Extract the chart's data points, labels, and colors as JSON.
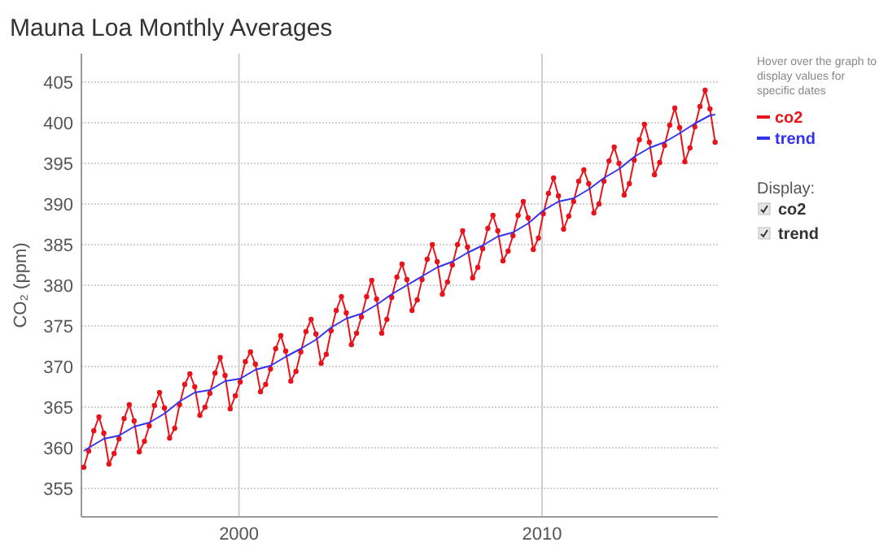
{
  "chart_data": {
    "type": "line",
    "title": "Mauna Loa Monthly Averages",
    "ylabel": "CO₂ (ppm)",
    "xlim": [
      1994.8,
      2015.8
    ],
    "xticks": [
      2000,
      2010
    ],
    "ylim": [
      351.5,
      408.5
    ],
    "yticks": [
      355,
      360,
      365,
      370,
      375,
      380,
      385,
      390,
      395,
      400,
      405
    ],
    "grid": true,
    "legend": "right",
    "line_style": "solid",
    "annotations": [
      "Hover over the graph to display values for specific dates",
      "Display:"
    ],
    "series": [
      {
        "name": "co2",
        "color": "#e8141b",
        "marker": "circle",
        "x": [
          1994.88,
          1995.04,
          1995.21,
          1995.38,
          1995.54,
          1995.71,
          1995.88,
          1996.04,
          1996.21,
          1996.38,
          1996.54,
          1996.71,
          1996.88,
          1997.04,
          1997.21,
          1997.38,
          1997.54,
          1997.71,
          1997.88,
          1998.04,
          1998.21,
          1998.38,
          1998.54,
          1998.71,
          1998.88,
          1999.04,
          1999.21,
          1999.38,
          1999.54,
          1999.71,
          1999.88,
          2000.04,
          2000.21,
          2000.38,
          2000.54,
          2000.71,
          2000.88,
          2001.04,
          2001.21,
          2001.38,
          2001.54,
          2001.71,
          2001.88,
          2002.04,
          2002.21,
          2002.38,
          2002.54,
          2002.71,
          2002.88,
          2003.04,
          2003.21,
          2003.38,
          2003.54,
          2003.71,
          2003.88,
          2004.04,
          2004.21,
          2004.38,
          2004.54,
          2004.71,
          2004.88,
          2005.04,
          2005.21,
          2005.38,
          2005.54,
          2005.71,
          2005.88,
          2006.04,
          2006.21,
          2006.38,
          2006.54,
          2006.71,
          2006.88,
          2007.04,
          2007.21,
          2007.38,
          2007.54,
          2007.71,
          2007.88,
          2008.04,
          2008.21,
          2008.38,
          2008.54,
          2008.71,
          2008.88,
          2009.04,
          2009.21,
          2009.38,
          2009.54,
          2009.71,
          2009.88,
          2010.04,
          2010.21,
          2010.38,
          2010.54,
          2010.71,
          2010.88,
          2011.04,
          2011.21,
          2011.38,
          2011.54,
          2011.71,
          2011.88,
          2012.04,
          2012.21,
          2012.38,
          2012.54,
          2012.71,
          2012.88,
          2013.04,
          2013.21,
          2013.38,
          2013.54,
          2013.71,
          2013.88,
          2014.04,
          2014.21,
          2014.38,
          2014.54,
          2014.71,
          2014.88,
          2015.04,
          2015.21,
          2015.38,
          2015.54,
          2015.71
        ],
        "values": [
          357.6,
          359.6,
          362.1,
          363.8,
          361.8,
          358.0,
          359.3,
          361.1,
          363.6,
          365.3,
          363.3,
          359.5,
          360.8,
          362.7,
          365.2,
          366.8,
          364.9,
          361.2,
          362.4,
          365.3,
          367.8,
          369.1,
          367.5,
          364.0,
          365.0,
          366.7,
          369.2,
          371.1,
          368.9,
          364.8,
          366.4,
          368.1,
          370.6,
          371.8,
          370.3,
          366.9,
          367.8,
          369.7,
          372.2,
          373.8,
          371.9,
          368.2,
          369.4,
          371.8,
          374.3,
          375.8,
          374.0,
          370.4,
          371.5,
          374.4,
          376.9,
          378.6,
          376.6,
          372.7,
          374.1,
          376.1,
          378.6,
          380.6,
          378.3,
          374.1,
          375.8,
          378.5,
          381.0,
          382.6,
          380.7,
          376.9,
          378.2,
          380.7,
          383.2,
          385.0,
          382.9,
          378.9,
          380.4,
          382.5,
          385.0,
          386.7,
          384.7,
          380.9,
          382.2,
          384.5,
          387.0,
          388.6,
          386.7,
          383.0,
          384.2,
          386.1,
          388.6,
          390.3,
          388.3,
          384.4,
          385.8,
          388.8,
          391.3,
          393.2,
          391.0,
          386.9,
          388.5,
          390.3,
          392.8,
          394.2,
          392.5,
          388.9,
          390.0,
          392.8,
          395.3,
          397.0,
          395.0,
          391.1,
          392.5,
          395.4,
          397.9,
          399.8,
          397.6,
          393.6,
          395.1,
          397.2,
          399.7,
          401.8,
          399.4,
          395.2,
          396.9,
          399.5,
          402.0,
          404.0,
          401.7,
          397.6
        ]
      },
      {
        "name": "trend",
        "color": "#3333ee",
        "marker": "none",
        "x": [
          1994.88,
          1995.04,
          1995.54,
          1996.04,
          1996.54,
          1997.04,
          1997.54,
          1998.04,
          1998.54,
          1999.04,
          1999.54,
          2000.04,
          2000.54,
          2001.04,
          2001.54,
          2002.04,
          2002.54,
          2003.04,
          2003.54,
          2004.04,
          2004.54,
          2005.04,
          2005.54,
          2006.04,
          2006.54,
          2007.04,
          2007.54,
          2008.04,
          2008.54,
          2009.04,
          2009.54,
          2010.04,
          2010.54,
          2011.04,
          2011.54,
          2012.04,
          2012.54,
          2013.04,
          2013.54,
          2014.04,
          2014.54,
          2015.04,
          2015.54,
          2015.71
        ],
        "values": [
          359.6,
          360.0,
          361.1,
          361.5,
          362.6,
          363.1,
          364.2,
          365.7,
          366.8,
          367.1,
          368.2,
          368.5,
          369.6,
          370.1,
          371.2,
          372.2,
          373.3,
          374.8,
          375.9,
          376.5,
          377.6,
          378.9,
          380.0,
          381.1,
          382.2,
          382.9,
          384.0,
          384.9,
          386.0,
          386.5,
          387.6,
          389.2,
          390.3,
          390.7,
          391.8,
          393.2,
          394.3,
          395.8,
          396.9,
          397.6,
          398.7,
          399.9,
          400.9,
          401.0
        ]
      }
    ]
  }
}
